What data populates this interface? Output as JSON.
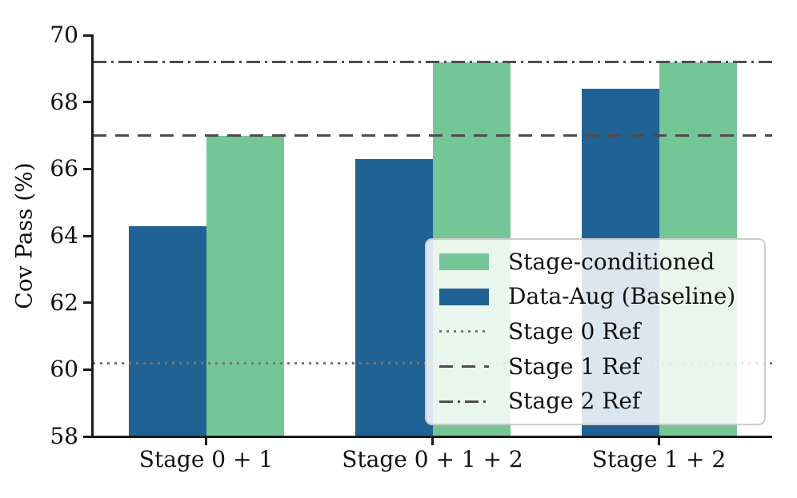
{
  "chart_data": {
    "type": "bar",
    "title": "",
    "xlabel": "",
    "ylabel": "Cov Pass (%)",
    "ylim": [
      58,
      70
    ],
    "yticks": [
      58,
      60,
      62,
      64,
      66,
      68,
      70
    ],
    "grid": false,
    "categories": [
      "Stage 0 + 1",
      "Stage 0 + 1 + 2",
      "Stage 1 + 2"
    ],
    "series": [
      {
        "name": "Data-Aug (Baseline)",
        "color": "#206293",
        "values": [
          64.3,
          66.3,
          68.4
        ]
      },
      {
        "name": "Stage-conditioned",
        "color": "#74c697",
        "values": [
          67.0,
          69.2,
          69.2
        ]
      }
    ],
    "ref_lines": [
      {
        "name": "Stage 0 Ref",
        "style": "dotted",
        "value": 60.2,
        "color": "#757575"
      },
      {
        "name": "Stage 1 Ref",
        "style": "dashed",
        "value": 67.0,
        "color": "#4d4d4d"
      },
      {
        "name": "Stage 2 Ref",
        "style": "dashdot",
        "value": 69.2,
        "color": "#4d4d4d"
      }
    ],
    "legend_position": "lower right"
  },
  "legend": {
    "items": [
      {
        "label": "Stage-conditioned",
        "series": 1
      },
      {
        "label": "Data-Aug (Baseline)",
        "series": 0
      },
      {
        "label": "Stage 0 Ref",
        "refline": 0
      },
      {
        "label": "Stage 1 Ref",
        "refline": 1
      },
      {
        "label": "Stage 2 Ref",
        "refline": 2
      }
    ]
  }
}
